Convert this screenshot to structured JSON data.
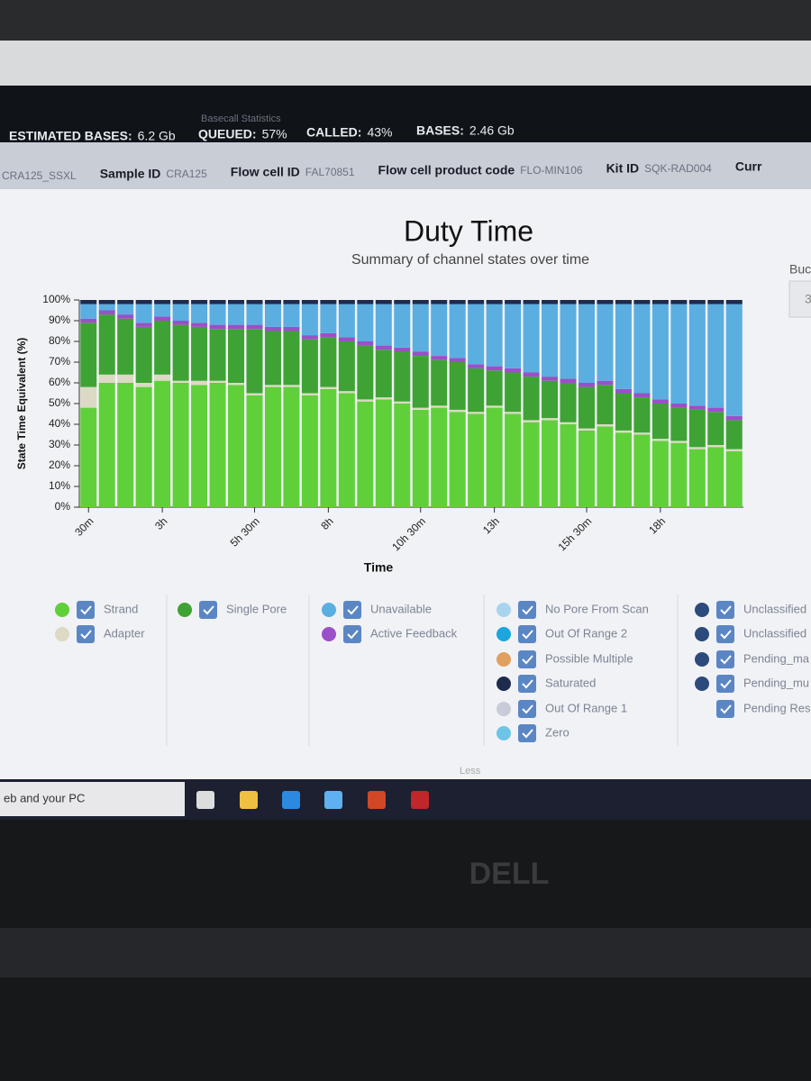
{
  "header": {
    "section": "Basecall Statistics",
    "stats": [
      {
        "label": "ESTIMATED BASES:",
        "value": "6.2 Gb"
      },
      {
        "label": "QUEUED:",
        "value": "57%"
      },
      {
        "label": "CALLED:",
        "value": "43%"
      },
      {
        "label": "BASES:",
        "value": "2.46 Gb"
      }
    ]
  },
  "run_info": [
    {
      "value": "CRA125_SSXL"
    },
    {
      "label": "Sample ID",
      "value": "CRA125"
    },
    {
      "label": "Flow cell ID",
      "value": "FAL70851"
    },
    {
      "label": "Flow cell product code",
      "value": "FLO-MIN106"
    },
    {
      "label": "Kit ID",
      "value": "SQK-RAD004"
    },
    {
      "label": "Curr"
    }
  ],
  "side_panel": {
    "label": "Buc",
    "value": "3"
  },
  "chart_data": {
    "type": "stacked_bar",
    "title": "Duty Time",
    "subtitle": "Summary of channel states over time",
    "y_label": "State Time Equivalent (%)",
    "x_label": "Time",
    "categories": [
      "30m",
      null,
      null,
      null,
      "3h",
      null,
      null,
      null,
      null,
      "5h 30m",
      null,
      null,
      null,
      "8h",
      null,
      null,
      null,
      null,
      "10h 30m",
      null,
      null,
      null,
      "13h",
      null,
      null,
      null,
      null,
      "15h 30m",
      null,
      null,
      null,
      "18h",
      null,
      null,
      null,
      null
    ],
    "ylim": [
      0,
      100
    ],
    "yticks": [
      {
        "value": 0,
        "label": "0%"
      },
      {
        "value": 10,
        "label": "10%"
      },
      {
        "value": 20,
        "label": "20%"
      },
      {
        "value": 30,
        "label": "30%"
      },
      {
        "value": 40,
        "label": "40%"
      },
      {
        "value": 50,
        "label": "50%"
      },
      {
        "value": 60,
        "label": "60%"
      },
      {
        "value": 70,
        "label": "70%"
      },
      {
        "value": 80,
        "label": "80%"
      },
      {
        "value": 90,
        "label": "90%"
      },
      {
        "value": 100,
        "label": "100%"
      }
    ],
    "grid": false,
    "series": [
      {
        "name": "Strand",
        "color": "#5fd03a",
        "values": [
          48,
          60,
          60,
          58,
          61,
          60,
          59,
          60,
          59,
          54,
          58,
          58,
          54,
          57,
          55,
          51,
          52,
          50,
          47,
          48,
          46,
          45,
          48,
          45,
          41,
          42,
          40,
          37,
          39,
          36,
          35,
          32,
          31,
          28,
          29,
          27
        ]
      },
      {
        "name": "Adapter",
        "color": "#dcd9c4",
        "values": [
          10,
          4,
          4,
          2,
          3,
          1,
          2,
          1,
          1,
          1,
          1,
          1,
          1,
          1,
          1,
          1,
          1,
          1,
          1,
          1,
          1,
          1,
          1,
          1,
          1,
          1,
          1,
          1,
          1,
          1,
          1,
          1,
          1,
          1,
          1,
          1
        ]
      },
      {
        "name": "Single Pore",
        "color": "#3ea334",
        "values": [
          31,
          29,
          27,
          27,
          26,
          27,
          26,
          25,
          26,
          31,
          26,
          26,
          26,
          24,
          24,
          26,
          23,
          24,
          25,
          22,
          23,
          21,
          17,
          19,
          21,
          18,
          19,
          20,
          19,
          18,
          17,
          17,
          16,
          18,
          16,
          14
        ]
      },
      {
        "name": "Active Feedback",
        "color": "#9b4fc9",
        "values": [
          2,
          2,
          2,
          2,
          2,
          2,
          2,
          2,
          2,
          2,
          2,
          2,
          2,
          2,
          2,
          2,
          2,
          2,
          2,
          2,
          2,
          2,
          2,
          2,
          2,
          2,
          2,
          2,
          2,
          2,
          2,
          2,
          2,
          2,
          2,
          2
        ]
      },
      {
        "name": "Unavailable",
        "color": "#5aafe0",
        "values": [
          7,
          3,
          5,
          9,
          6,
          8,
          9,
          10,
          10,
          10,
          11,
          11,
          15,
          14,
          16,
          18,
          20,
          21,
          23,
          25,
          26,
          29,
          30,
          31,
          33,
          35,
          36,
          38,
          37,
          41,
          43,
          46,
          48,
          49,
          50,
          54
        ]
      },
      {
        "name": "Saturated",
        "color": "#1e2b4d",
        "values": [
          2,
          2,
          2,
          2,
          2,
          2,
          2,
          2,
          2,
          2,
          2,
          2,
          2,
          2,
          2,
          2,
          2,
          2,
          2,
          2,
          2,
          2,
          2,
          2,
          2,
          2,
          2,
          2,
          2,
          2,
          2,
          2,
          2,
          2,
          2,
          2
        ]
      }
    ],
    "other_states": [
      {
        "name": "No Pore From Scan",
        "color": "#a8d4ef"
      },
      {
        "name": "Out Of Range 2",
        "color": "#1ca5de"
      },
      {
        "name": "Possible Multiple",
        "color": "#e0a060"
      },
      {
        "name": "Out Of Range 1",
        "color": "#c8ccd8"
      },
      {
        "name": "Zero",
        "color": "#6cc4e6"
      },
      {
        "name": "Unclassified",
        "color": "#2c4a7c"
      },
      {
        "name": "Unclassified",
        "color": "#2c4a7c"
      },
      {
        "name": "Pending_ma",
        "color": "#2c4a7c"
      },
      {
        "name": "Pending_mu",
        "color": "#2c4a7c"
      },
      {
        "name": "Pending Res"
      }
    ]
  },
  "footer": {
    "toggle": "Less"
  },
  "taskbar": {
    "search": "eb and your PC"
  },
  "laptop": {
    "brand": "DELL"
  }
}
